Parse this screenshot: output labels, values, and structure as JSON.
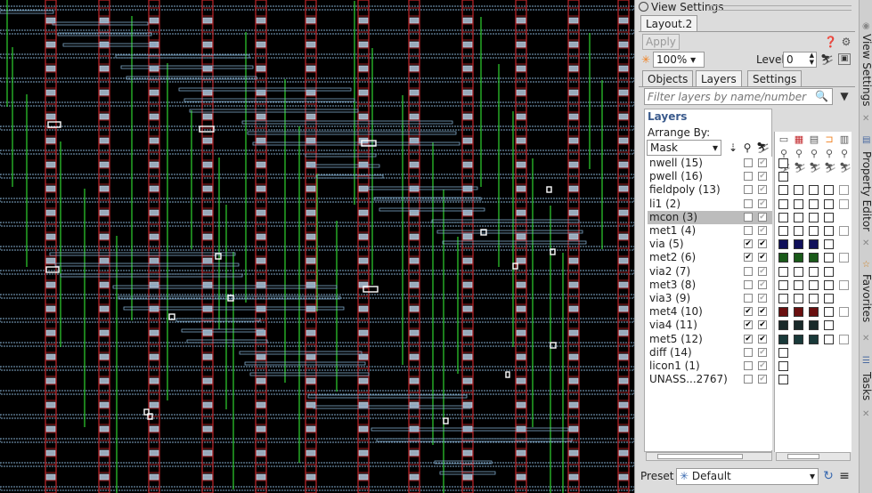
{
  "panel": {
    "title": "View Settings",
    "tab": "Layout.2",
    "apply_label": "Apply",
    "zoom": "100%",
    "level_label": "Level",
    "level_value": "0",
    "subtabs": [
      "Objects",
      "Layers",
      "Settings"
    ],
    "active_subtab": "Layers",
    "filter_placeholder": "Filter layers by name/number",
    "layers_heading": "Layers",
    "arrange_label": "Arrange By:",
    "arrange_value": "Mask",
    "preset_label": "Preset",
    "preset_value": "Default"
  },
  "layers": [
    {
      "name": "nwell (15)",
      "visible": false,
      "selectable": true
    },
    {
      "name": "pwell (16)",
      "visible": false,
      "selectable": true
    },
    {
      "name": "fieldpoly (13)",
      "visible": false,
      "selectable": true
    },
    {
      "name": "li1 (2)",
      "visible": false,
      "selectable": true
    },
    {
      "name": "mcon (3)",
      "visible": false,
      "selectable": true,
      "selected": true
    },
    {
      "name": "met1 (4)",
      "visible": false,
      "selectable": true
    },
    {
      "name": "via (5)",
      "visible": true,
      "selectable": true
    },
    {
      "name": "met2 (6)",
      "visible": true,
      "selectable": true
    },
    {
      "name": "via2 (7)",
      "visible": false,
      "selectable": true
    },
    {
      "name": "met3 (8)",
      "visible": false,
      "selectable": true
    },
    {
      "name": "via3 (9)",
      "visible": false,
      "selectable": true
    },
    {
      "name": "met4 (10)",
      "visible": true,
      "selectable": true
    },
    {
      "name": "via4 (11)",
      "visible": true,
      "selectable": true
    },
    {
      "name": "met5 (12)",
      "visible": true,
      "selectable": true
    },
    {
      "name": "diff (14)",
      "visible": false,
      "selectable": true
    },
    {
      "name": "licon1 (1)",
      "visible": false,
      "selectable": true
    },
    {
      "name": "UNASS...2767)",
      "visible": false,
      "selectable": true
    }
  ],
  "sidebar": {
    "items": [
      "View Settings",
      "Property Editor",
      "Favorites",
      "Tasks"
    ]
  },
  "colors": {
    "canvas_bg": "#000000",
    "metal_red": "#c0262a",
    "via_green": "#2fd12f",
    "wire_blue": "#7fa8c8",
    "accent_orange": "#f08020"
  }
}
